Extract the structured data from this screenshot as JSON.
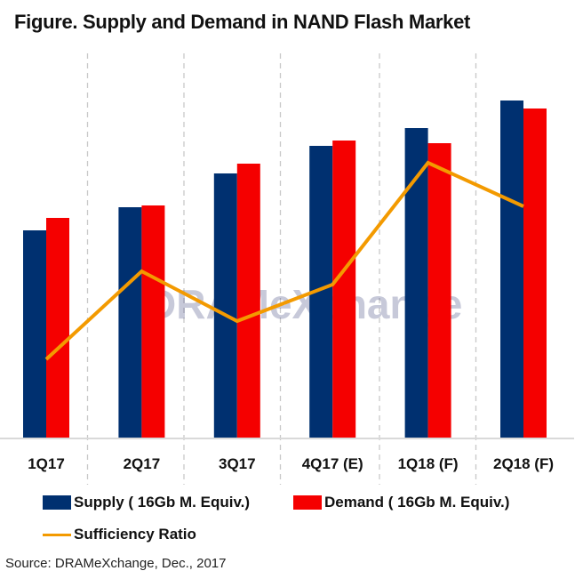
{
  "chart_data": {
    "type": "bar",
    "title": "Figure. Supply and Demand in NAND Flash Market",
    "xlabel": "",
    "ylabel": "",
    "y_axis_labels_shown": false,
    "value_units": "relative (no axis scale shown; estimated on 0-400 relative scale)",
    "ylim": [
      0,
      400
    ],
    "categories": [
      "1Q17",
      "2Q17",
      "3Q17",
      "4Q17 (E)",
      "1Q18 (F)",
      "2Q18 (F)"
    ],
    "series": [
      {
        "name": "Supply ( 16Gb M. Equiv.)",
        "type": "bar",
        "color": "#003070",
        "values": [
          234,
          260,
          298,
          329,
          349,
          380
        ]
      },
      {
        "name": "Demand ( 16Gb M. Equiv.)",
        "type": "bar",
        "color": "#f50000",
        "values": [
          248,
          262,
          309,
          335,
          332,
          371
        ]
      },
      {
        "name": "Sufficiency Ratio",
        "type": "line",
        "color": "#f39a00",
        "values": [
          89,
          188,
          132,
          173,
          310,
          261
        ]
      }
    ],
    "grid": "vertical dashed separators between categories",
    "legend_position": "bottom",
    "watermark": "DRAMeXchange"
  },
  "footer": {
    "source": "Source: DRAMeXchange, Dec., 2017"
  }
}
